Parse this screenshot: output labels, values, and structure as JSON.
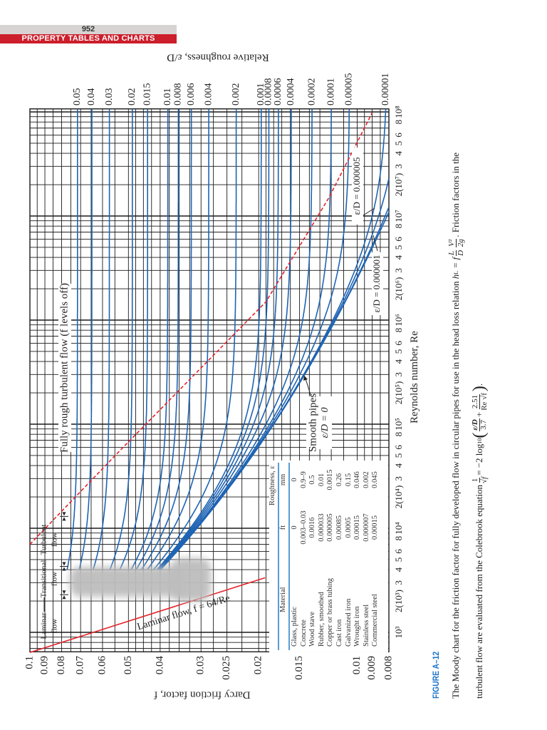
{
  "header": {
    "page_number": "952",
    "section_title": "PROPERTY TABLES AND CHARTS"
  },
  "colors": {
    "header_gray": "#d8d3d3",
    "header_red": "#cc1e2b",
    "curve_blue": "#1e64b4",
    "laminar_red": "#e5232a",
    "boundary_red": "#e5232a",
    "figure_blue": "#1b73c9",
    "table_rule_blue": "#5b9bd5",
    "grid": "#1a1a1a"
  },
  "chart_data": {
    "type": "line",
    "title": "",
    "xlabel": "Reynolds number, Re",
    "ylabel": "Darcy friction factor, f",
    "y2label": "Relative roughness, ε/D",
    "xscale": "log",
    "yscale": "log",
    "xlim": [
      650,
      107000000
    ],
    "ylim": [
      0.008,
      0.1
    ],
    "grid": true,
    "x_ticks": [
      {
        "value": 1000,
        "label": "10³"
      },
      {
        "value": 2000,
        "label": "2(10³)"
      },
      {
        "value": 3000,
        "label": "3"
      },
      {
        "value": 4000,
        "label": "4"
      },
      {
        "value": 5000,
        "label": "5"
      },
      {
        "value": 6000,
        "label": "6"
      },
      {
        "value": 8000,
        "label": "8"
      },
      {
        "value": 10000,
        "label": "10⁴"
      },
      {
        "value": 20000,
        "label": "2(10⁴)"
      },
      {
        "value": 30000,
        "label": "3"
      },
      {
        "value": 40000,
        "label": "4"
      },
      {
        "value": 50000,
        "label": "5"
      },
      {
        "value": 60000,
        "label": "6"
      },
      {
        "value": 80000,
        "label": "8"
      },
      {
        "value": 100000,
        "label": "10⁵"
      },
      {
        "value": 200000,
        "label": "2(10⁵)"
      },
      {
        "value": 300000,
        "label": "3"
      },
      {
        "value": 400000,
        "label": "4"
      },
      {
        "value": 500000,
        "label": "5"
      },
      {
        "value": 600000,
        "label": "6"
      },
      {
        "value": 800000,
        "label": "8"
      },
      {
        "value": 1000000,
        "label": "10⁶"
      },
      {
        "value": 2000000,
        "label": "2(10⁶)"
      },
      {
        "value": 3000000,
        "label": "3"
      },
      {
        "value": 4000000,
        "label": "4"
      },
      {
        "value": 5000000,
        "label": "5"
      },
      {
        "value": 6000000,
        "label": "6"
      },
      {
        "value": 8000000,
        "label": "8"
      },
      {
        "value": 10000000,
        "label": "10⁷"
      },
      {
        "value": 20000000,
        "label": "2(10⁷)"
      },
      {
        "value": 30000000,
        "label": "3"
      },
      {
        "value": 40000000,
        "label": "4"
      },
      {
        "value": 50000000,
        "label": "5"
      },
      {
        "value": 60000000,
        "label": "6"
      },
      {
        "value": 80000000,
        "label": "8"
      },
      {
        "value": 100000000,
        "label": "10⁸"
      }
    ],
    "y_ticks": [
      {
        "value": 0.1,
        "label": "0.1"
      },
      {
        "value": 0.09,
        "label": "0.09"
      },
      {
        "value": 0.08,
        "label": "0.08"
      },
      {
        "value": 0.07,
        "label": "0.07"
      },
      {
        "value": 0.06,
        "label": "0.06"
      },
      {
        "value": 0.05,
        "label": "0.05"
      },
      {
        "value": 0.04,
        "label": "0.04"
      },
      {
        "value": 0.03,
        "label": "0.03"
      },
      {
        "value": 0.025,
        "label": "0.025"
      },
      {
        "value": 0.02,
        "label": "0.02"
      },
      {
        "value": 0.015,
        "label": "0.015"
      },
      {
        "value": 0.01,
        "label": "0.01"
      },
      {
        "value": 0.009,
        "label": "0.009"
      },
      {
        "value": 0.008,
        "label": "0.008"
      }
    ],
    "relative_roughness_labels": [
      {
        "value": 0.05,
        "label": "0.05"
      },
      {
        "value": 0.04,
        "label": "0.04"
      },
      {
        "value": 0.03,
        "label": "0.03"
      },
      {
        "value": 0.02,
        "label": "0.02"
      },
      {
        "value": 0.015,
        "label": "0.015"
      },
      {
        "value": 0.01,
        "label": "0.01"
      },
      {
        "value": 0.008,
        "label": "0.008"
      },
      {
        "value": 0.006,
        "label": "0.006"
      },
      {
        "value": 0.004,
        "label": "0.004"
      },
      {
        "value": 0.002,
        "label": "0.002"
      },
      {
        "value": 0.001,
        "label": "0.001"
      },
      {
        "value": 0.0008,
        "label": "0.0008"
      },
      {
        "value": 0.0006,
        "label": "0.0006"
      },
      {
        "value": 0.0004,
        "label": "0.0004"
      },
      {
        "value": 0.0002,
        "label": "0.0002"
      },
      {
        "value": 0.0001,
        "label": "0.0001"
      },
      {
        "value": 5e-05,
        "label": "0.00005"
      },
      {
        "value": 1e-05,
        "label": "0.00001"
      }
    ],
    "turbulent_series": {
      "model": "Colebrook",
      "re_range": [
        4000,
        107000000
      ],
      "relative_roughness": [
        0.05,
        0.04,
        0.03,
        0.02,
        0.015,
        0.01,
        0.008,
        0.006,
        0.004,
        0.002,
        0.001,
        0.0008,
        0.0006,
        0.0004,
        0.0002,
        0.0001,
        5e-05,
        1e-05,
        5e-06,
        1e-06,
        0
      ]
    },
    "laminar_series": {
      "equation": "f = 64/Re",
      "re_range": [
        640,
        3350
      ]
    },
    "fully_rough_boundary": [
      [
        7000,
        0.1
      ],
      [
        53700,
        0.0537
      ],
      [
        1500000,
        0.019
      ],
      [
        15000000,
        0.0122
      ],
      [
        98000000,
        0.009
      ]
    ],
    "regime_markers_re": [
      2300,
      4300,
      13000
    ]
  },
  "annotations": {
    "laminar_line": "Laminar flow, f = 64/Re",
    "fully_rough": "Fully rough turbulent flow (f levels off)",
    "smooth_line1": "Smooth pipes",
    "smooth_line2": "ε/D = 0",
    "eps_000001": "ε/D = 0.000001",
    "eps_000005": "ε/D = 0.000005",
    "regimes": [
      {
        "line1": "Laminar",
        "line2": "flow"
      },
      {
        "line1": "Transitional",
        "line2": "flow"
      },
      {
        "line1": "Turbulent",
        "line2": "flow"
      }
    ]
  },
  "table": {
    "group_header": "Roughness, ε",
    "columns": [
      "Material",
      "ft",
      "mm"
    ],
    "rows": [
      [
        "Glass, plastic",
        "0",
        "0"
      ],
      [
        "Concrete",
        "0.003–0.03",
        "0.9–9"
      ],
      [
        "Wood stave",
        "0.0016",
        "0.5"
      ],
      [
        "Rubber, smoothed",
        "0.000033",
        "0.01"
      ],
      [
        "Copper or brass tubing",
        "0.000005",
        "0.0015"
      ],
      [
        "Cast iron",
        "0.00085",
        "0.26"
      ],
      [
        "Galvanized iron",
        "0.0005",
        "0.15"
      ],
      [
        "Wrought iron",
        "0.00015",
        "0.046"
      ],
      [
        "Stainless steel",
        "0.000007",
        "0.002"
      ],
      [
        "Commercial steel",
        "0.00015",
        "0.045"
      ]
    ]
  },
  "caption": {
    "figure_label": "FIGURE A–12",
    "line1_text": "The Moody chart for the friction factor for fully developed flow in circular pipes for use in the head loss relation",
    "hl": "h",
    "hl_sub": "L",
    "eq_f": "= f",
    "frac_L": "L",
    "frac_D": "D",
    "frac_V2": "V²",
    "frac_2g": "2g",
    "line1_end": ". Friction factors in the",
    "line2_text": "turbulent flow are evaluated from the Colebrook equation",
    "frac_one": "1",
    "sqrt_f": "√f",
    "eq_rhs": "= −2 log",
    "log_sub": "10",
    "frac_eps": "ε/D",
    "frac_37": "3.7",
    "plus": "+",
    "frac_251": "2.51",
    "frac_re": "Re √f",
    "line2_end": "."
  }
}
